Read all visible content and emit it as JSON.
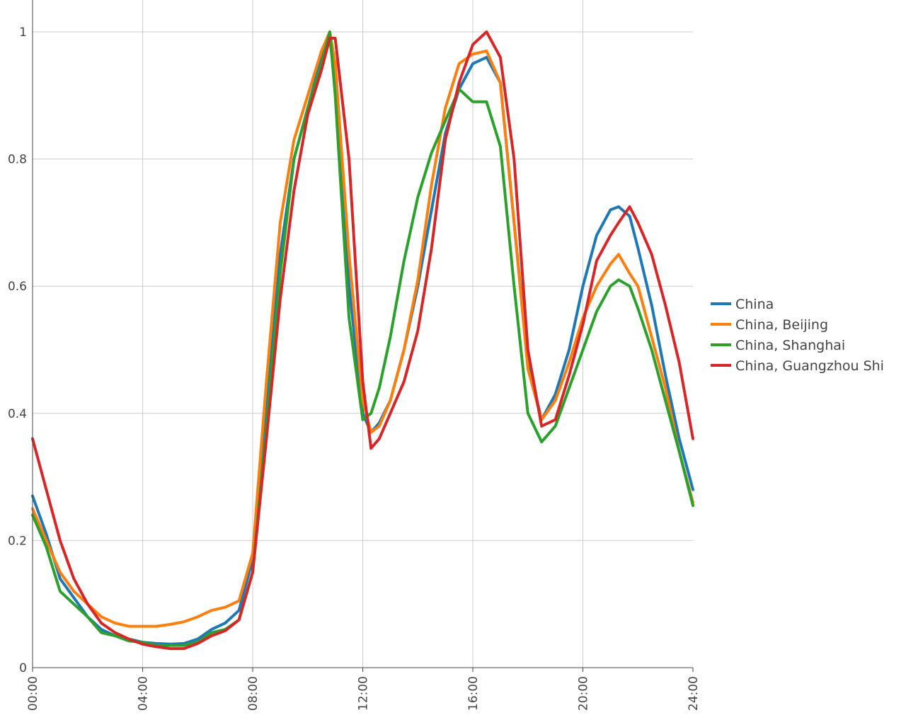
{
  "chart_data": {
    "type": "line",
    "title": "",
    "xlabel": "",
    "ylabel": "",
    "x_ticks": [
      "00:00",
      "04:00",
      "08:00",
      "12:00",
      "16:00",
      "20:00",
      "24:00"
    ],
    "y_ticks": [
      0,
      0.2,
      0.4,
      0.6,
      0.8,
      1
    ],
    "y_tick_labels": [
      "0",
      "0.2",
      "0.4",
      "0.6",
      "0.8",
      "1"
    ],
    "xlim": [
      0,
      24
    ],
    "ylim": [
      0,
      1.05
    ],
    "grid": true,
    "legend_position": "right",
    "x_unit": "hours",
    "series": [
      {
        "name": "China",
        "color": "#1f77b4",
        "points": [
          [
            0,
            0.27
          ],
          [
            0.5,
            0.21
          ],
          [
            1,
            0.14
          ],
          [
            1.5,
            0.11
          ],
          [
            2,
            0.08
          ],
          [
            2.5,
            0.06
          ],
          [
            3,
            0.05
          ],
          [
            3.5,
            0.045
          ],
          [
            4,
            0.04
          ],
          [
            4.5,
            0.038
          ],
          [
            5,
            0.037
          ],
          [
            5.5,
            0.038
          ],
          [
            6,
            0.045
          ],
          [
            6.5,
            0.06
          ],
          [
            7,
            0.07
          ],
          [
            7.5,
            0.09
          ],
          [
            8,
            0.17
          ],
          [
            8.5,
            0.4
          ],
          [
            9,
            0.65
          ],
          [
            9.5,
            0.8
          ],
          [
            10,
            0.88
          ],
          [
            10.5,
            0.96
          ],
          [
            10.8,
            0.99
          ],
          [
            11,
            0.92
          ],
          [
            11.5,
            0.6
          ],
          [
            12,
            0.4
          ],
          [
            12.3,
            0.37
          ],
          [
            12.6,
            0.385
          ],
          [
            13,
            0.42
          ],
          [
            13.5,
            0.5
          ],
          [
            14,
            0.6
          ],
          [
            14.5,
            0.72
          ],
          [
            15,
            0.84
          ],
          [
            15.5,
            0.91
          ],
          [
            16,
            0.95
          ],
          [
            16.5,
            0.96
          ],
          [
            17,
            0.92
          ],
          [
            17.5,
            0.7
          ],
          [
            18,
            0.48
          ],
          [
            18.5,
            0.39
          ],
          [
            19,
            0.43
          ],
          [
            19.5,
            0.5
          ],
          [
            20,
            0.6
          ],
          [
            20.5,
            0.68
          ],
          [
            21,
            0.72
          ],
          [
            21.3,
            0.725
          ],
          [
            21.7,
            0.71
          ],
          [
            22,
            0.66
          ],
          [
            22.5,
            0.57
          ],
          [
            23,
            0.46
          ],
          [
            23.5,
            0.36
          ],
          [
            24,
            0.28
          ]
        ]
      },
      {
        "name": "China, Beijing",
        "color": "#ff7f0e",
        "points": [
          [
            0,
            0.25
          ],
          [
            0.5,
            0.2
          ],
          [
            1,
            0.15
          ],
          [
            1.5,
            0.12
          ],
          [
            2,
            0.1
          ],
          [
            2.5,
            0.08
          ],
          [
            3,
            0.07
          ],
          [
            3.5,
            0.065
          ],
          [
            4,
            0.065
          ],
          [
            4.5,
            0.065
          ],
          [
            5,
            0.068
          ],
          [
            5.5,
            0.072
          ],
          [
            6,
            0.08
          ],
          [
            6.5,
            0.09
          ],
          [
            7,
            0.095
          ],
          [
            7.5,
            0.105
          ],
          [
            8,
            0.18
          ],
          [
            8.5,
            0.45
          ],
          [
            9,
            0.7
          ],
          [
            9.5,
            0.83
          ],
          [
            10,
            0.9
          ],
          [
            10.5,
            0.97
          ],
          [
            10.8,
            1.0
          ],
          [
            11,
            0.95
          ],
          [
            11.5,
            0.65
          ],
          [
            12,
            0.42
          ],
          [
            12.3,
            0.37
          ],
          [
            12.6,
            0.38
          ],
          [
            13,
            0.42
          ],
          [
            13.5,
            0.5
          ],
          [
            14,
            0.61
          ],
          [
            14.5,
            0.76
          ],
          [
            15,
            0.88
          ],
          [
            15.5,
            0.95
          ],
          [
            16,
            0.965
          ],
          [
            16.5,
            0.97
          ],
          [
            17,
            0.92
          ],
          [
            17.5,
            0.7
          ],
          [
            18,
            0.47
          ],
          [
            18.5,
            0.39
          ],
          [
            19,
            0.42
          ],
          [
            19.5,
            0.48
          ],
          [
            20,
            0.55
          ],
          [
            20.5,
            0.6
          ],
          [
            21,
            0.635
          ],
          [
            21.3,
            0.65
          ],
          [
            21.7,
            0.62
          ],
          [
            22,
            0.6
          ],
          [
            22.5,
            0.52
          ],
          [
            23,
            0.44
          ],
          [
            23.5,
            0.34
          ],
          [
            24,
            0.26
          ]
        ]
      },
      {
        "name": "China, Shanghai",
        "color": "#2ca02c",
        "points": [
          [
            0,
            0.24
          ],
          [
            0.5,
            0.19
          ],
          [
            1,
            0.12
          ],
          [
            1.5,
            0.1
          ],
          [
            2,
            0.08
          ],
          [
            2.5,
            0.055
          ],
          [
            3,
            0.05
          ],
          [
            3.5,
            0.042
          ],
          [
            4,
            0.04
          ],
          [
            4.5,
            0.035
          ],
          [
            5,
            0.035
          ],
          [
            5.5,
            0.035
          ],
          [
            6,
            0.04
          ],
          [
            6.5,
            0.055
          ],
          [
            7,
            0.06
          ],
          [
            7.5,
            0.075
          ],
          [
            8,
            0.15
          ],
          [
            8.5,
            0.38
          ],
          [
            9,
            0.62
          ],
          [
            9.5,
            0.8
          ],
          [
            10,
            0.88
          ],
          [
            10.5,
            0.95
          ],
          [
            10.8,
            1.0
          ],
          [
            11,
            0.9
          ],
          [
            11.5,
            0.55
          ],
          [
            12,
            0.39
          ],
          [
            12.3,
            0.4
          ],
          [
            12.6,
            0.44
          ],
          [
            13,
            0.52
          ],
          [
            13.5,
            0.64
          ],
          [
            14,
            0.74
          ],
          [
            14.5,
            0.81
          ],
          [
            15,
            0.86
          ],
          [
            15.5,
            0.91
          ],
          [
            16,
            0.89
          ],
          [
            16.5,
            0.89
          ],
          [
            17,
            0.82
          ],
          [
            17.5,
            0.6
          ],
          [
            18,
            0.4
          ],
          [
            18.5,
            0.355
          ],
          [
            19,
            0.38
          ],
          [
            19.5,
            0.44
          ],
          [
            20,
            0.5
          ],
          [
            20.5,
            0.56
          ],
          [
            21,
            0.6
          ],
          [
            21.3,
            0.61
          ],
          [
            21.7,
            0.6
          ],
          [
            22,
            0.565
          ],
          [
            22.5,
            0.5
          ],
          [
            23,
            0.42
          ],
          [
            23.5,
            0.34
          ],
          [
            24,
            0.255
          ]
        ]
      },
      {
        "name": "China, Guangzhou Shi",
        "color": "#d62728",
        "points": [
          [
            0,
            0.36
          ],
          [
            0.5,
            0.28
          ],
          [
            1,
            0.2
          ],
          [
            1.5,
            0.14
          ],
          [
            2,
            0.1
          ],
          [
            2.5,
            0.07
          ],
          [
            3,
            0.055
          ],
          [
            3.5,
            0.045
          ],
          [
            4,
            0.037
          ],
          [
            4.5,
            0.033
          ],
          [
            5,
            0.03
          ],
          [
            5.5,
            0.03
          ],
          [
            6,
            0.038
          ],
          [
            6.5,
            0.05
          ],
          [
            7,
            0.058
          ],
          [
            7.5,
            0.075
          ],
          [
            8,
            0.15
          ],
          [
            8.5,
            0.36
          ],
          [
            9,
            0.58
          ],
          [
            9.5,
            0.75
          ],
          [
            10,
            0.87
          ],
          [
            10.5,
            0.94
          ],
          [
            10.8,
            0.99
          ],
          [
            11,
            0.99
          ],
          [
            11.5,
            0.8
          ],
          [
            12,
            0.45
          ],
          [
            12.3,
            0.345
          ],
          [
            12.6,
            0.36
          ],
          [
            13,
            0.4
          ],
          [
            13.5,
            0.45
          ],
          [
            14,
            0.53
          ],
          [
            14.5,
            0.66
          ],
          [
            15,
            0.83
          ],
          [
            15.5,
            0.92
          ],
          [
            16,
            0.98
          ],
          [
            16.5,
            1.0
          ],
          [
            17,
            0.96
          ],
          [
            17.5,
            0.8
          ],
          [
            18,
            0.5
          ],
          [
            18.5,
            0.38
          ],
          [
            19,
            0.39
          ],
          [
            19.5,
            0.46
          ],
          [
            20,
            0.54
          ],
          [
            20.5,
            0.64
          ],
          [
            21,
            0.68
          ],
          [
            21.3,
            0.7
          ],
          [
            21.7,
            0.725
          ],
          [
            22,
            0.7
          ],
          [
            22.5,
            0.65
          ],
          [
            23,
            0.57
          ],
          [
            23.5,
            0.48
          ],
          [
            24,
            0.36
          ]
        ]
      }
    ]
  }
}
